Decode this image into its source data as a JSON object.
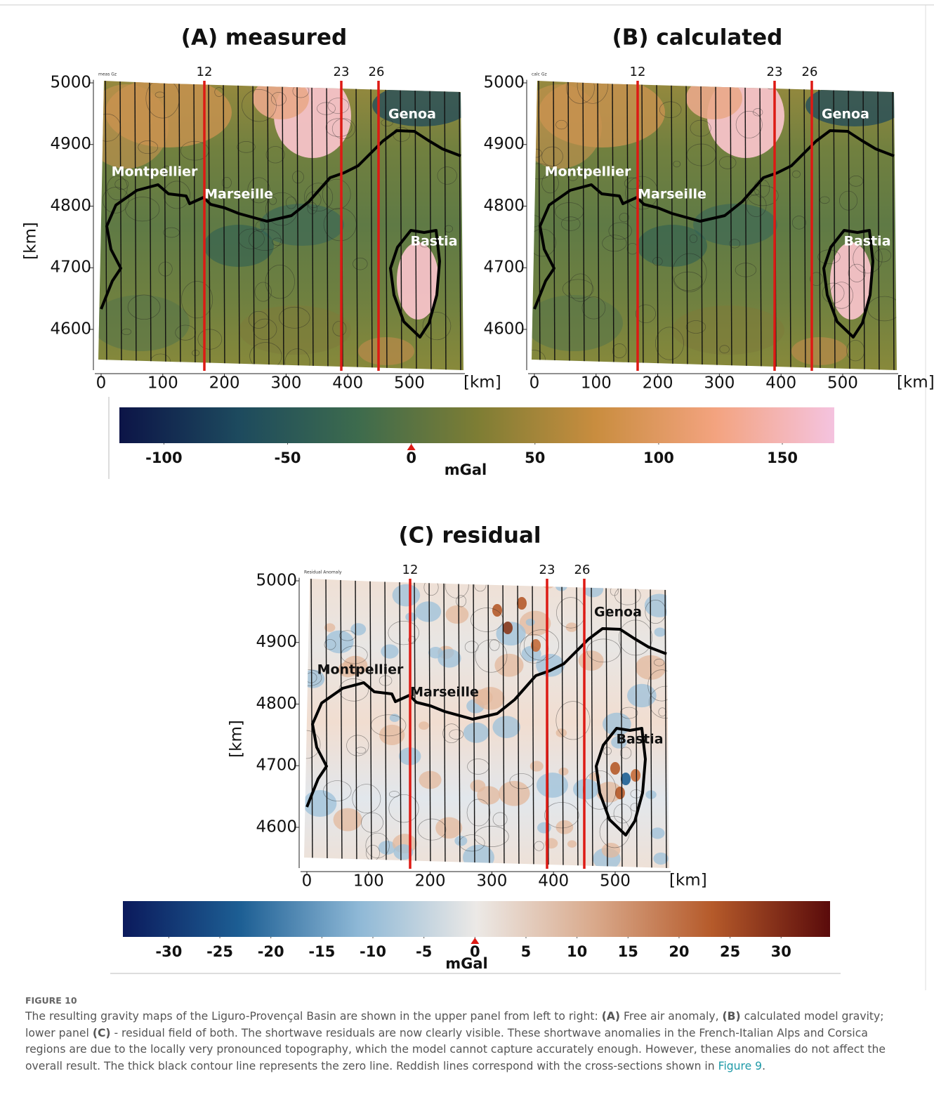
{
  "figure": {
    "panels": [
      {
        "title": "(A) measured",
        "note": "meas Gz",
        "palette": "terrain",
        "label_color": "#ffffff",
        "xlim": [
          -10,
          590
        ],
        "ylim": [
          4530,
          5005
        ],
        "xticks": [
          0,
          100,
          200,
          300,
          400,
          500
        ],
        "yticks": [
          4600,
          4700,
          4800,
          4900,
          5000
        ],
        "x_unit": "[km]",
        "profiles": [
          "12",
          "23",
          "26"
        ],
        "cities": [
          "Genoa",
          "Montpellier",
          "Marseille",
          "Bastia"
        ]
      },
      {
        "title": "(B) calculated",
        "note": "calc Gz",
        "palette": "terrain",
        "label_color": "#ffffff",
        "xlim": [
          -10,
          590
        ],
        "ylim": [
          4530,
          5005
        ],
        "xticks": [
          0,
          100,
          200,
          300,
          400,
          500
        ],
        "yticks": [
          4600,
          4700,
          4800,
          4900,
          5000
        ],
        "profiles": [
          "12",
          "23",
          "26"
        ],
        "cities": [
          "Genoa",
          "Montpellier",
          "Marseille",
          "Bastia"
        ]
      },
      {
        "title": "(C) residual",
        "note": "Residual Anomaly",
        "palette": "residual",
        "label_color": "#111111",
        "xlim": [
          -10,
          590
        ],
        "ylim": [
          4530,
          5005
        ],
        "xticks": [
          0,
          100,
          200,
          300,
          400,
          500
        ],
        "yticks": [
          4600,
          4700,
          4800,
          4900,
          5000
        ],
        "x_unit": "[km]",
        "y_label": "[km]",
        "profiles": [
          "12",
          "23",
          "26"
        ],
        "cities": [
          "Genoa",
          "Montpellier",
          "Marseille",
          "Bastia"
        ]
      }
    ],
    "y_label": "[km]",
    "colorbars": [
      {
        "label": "mGal",
        "lim": [
          -118,
          171
        ],
        "ticks": [
          -100,
          -50,
          0,
          50,
          100,
          150
        ],
        "marker": 0,
        "colors": [
          "#0c1447",
          "#1d4a5e",
          "#3d6b4d",
          "#7d7d34",
          "#c98d3f",
          "#f3a37f",
          "#f4c3df"
        ]
      },
      {
        "label": "mGal",
        "lim": [
          -34.5,
          34.8
        ],
        "ticks": [
          -30,
          -25,
          -20,
          -15,
          -10,
          -5,
          0,
          5,
          10,
          15,
          20,
          25,
          30
        ],
        "marker": 0,
        "colors": [
          "#0b1a5c",
          "#1d5f94",
          "#8eb8d6",
          "#ece9e6",
          "#d9a98b",
          "#b55a2a",
          "#5a0b0b"
        ]
      }
    ]
  },
  "caption": {
    "label": "FIGURE 10",
    "parts": [
      "The resulting gravity maps of the Liguro-Provençal Basin are shown in the upper panel from left to right: ",
      "(A)",
      " Free air anomaly, ",
      "(B)",
      " calculated model gravity; lower panel ",
      "(C)",
      " - residual field of both. The shortwave residuals are now clearly visible. These shortwave anomalies in the French-Italian Alps and Corsica regions are due to the locally very pronounced topography, which the model cannot capture accurately enough. However, these anomalies do not affect the overall result. The thick black contour line represents the zero line. Reddish lines correspond with the cross-sections shown in ",
      "Figure 9",
      "."
    ]
  }
}
